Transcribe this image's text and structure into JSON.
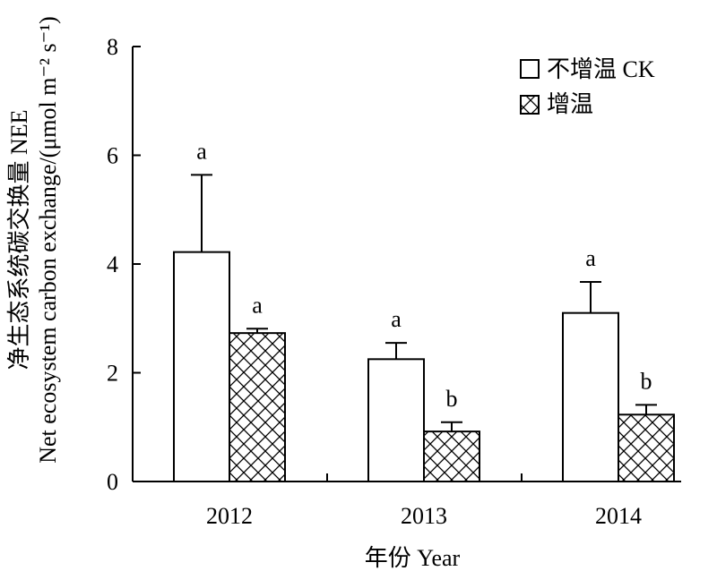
{
  "chart_data": {
    "type": "bar",
    "categories": [
      "2012",
      "2013",
      "2014"
    ],
    "series": [
      {
        "name": "不增温 CK",
        "pattern": "open",
        "values": [
          4.22,
          2.25,
          3.1
        ],
        "errors": [
          1.42,
          0.3,
          0.57
        ],
        "significance": [
          "a",
          "a",
          "a"
        ]
      },
      {
        "name": "增温",
        "pattern": "crosshatch",
        "values": [
          2.73,
          0.92,
          1.23
        ],
        "errors": [
          0.08,
          0.17,
          0.18
        ],
        "significance": [
          "a",
          "b",
          "b"
        ]
      }
    ],
    "xlabel": "年份 Year",
    "ylabel_line1": "净生态系统碳交换量 NEE",
    "ylabel_line2": "Net ecosystem carbon exchange/(μmol m⁻² s⁻¹)",
    "ylim": [
      0,
      8
    ],
    "yticks": [
      0,
      2,
      4,
      6,
      8
    ],
    "legend_position": "top-right",
    "grid": false
  }
}
